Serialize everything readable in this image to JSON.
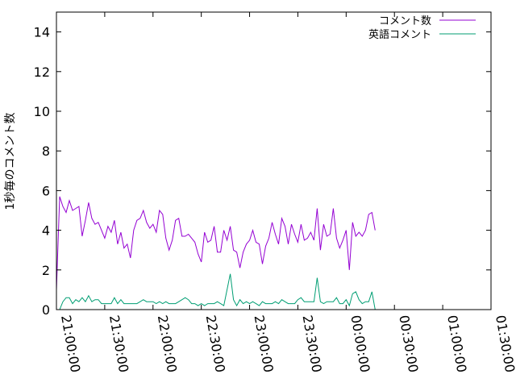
{
  "chart_data": {
    "type": "line",
    "ylabel": "1秒毎のコメント数",
    "xlabel": "",
    "title": "",
    "ylim": [
      0,
      15
    ],
    "yticks": [
      0,
      2,
      4,
      6,
      8,
      10,
      12,
      14
    ],
    "xlim_seconds_from_2100": [
      0,
      16200
    ],
    "xticks": [
      "21:00:00",
      "21:30:00",
      "22:00:00",
      "22:30:00",
      "23:00:00",
      "23:30:00",
      "00:00:00",
      "00:30:00",
      "01:00:00",
      "01:30:00"
    ],
    "legend_position": "top-right",
    "grid": false,
    "x_step_seconds": 120,
    "series": [
      {
        "name": "コメント数",
        "color": "#9400d3",
        "values": [
          1.0,
          5.7,
          5.2,
          4.9,
          5.5,
          5.0,
          5.1,
          5.2,
          3.7,
          4.5,
          5.4,
          4.6,
          4.3,
          4.4,
          4.0,
          3.6,
          4.2,
          3.9,
          4.5,
          3.3,
          3.9,
          3.1,
          3.3,
          2.6,
          4.0,
          4.5,
          4.6,
          5.0,
          4.4,
          4.1,
          4.3,
          3.9,
          5.0,
          4.8,
          3.6,
          3.0,
          3.5,
          4.5,
          4.6,
          3.7,
          3.7,
          3.8,
          3.6,
          3.4,
          2.8,
          2.4,
          3.9,
          3.4,
          3.5,
          4.2,
          2.9,
          2.9,
          4.0,
          3.5,
          4.2,
          3.0,
          2.9,
          2.1,
          2.9,
          3.3,
          3.5,
          4.0,
          3.4,
          3.3,
          2.3,
          3.2,
          3.6,
          4.4,
          3.8,
          3.3,
          4.6,
          4.2,
          3.3,
          4.3,
          3.8,
          3.4,
          4.3,
          3.5,
          3.6,
          3.9,
          3.5,
          5.1,
          3.0,
          4.3,
          3.7,
          3.8,
          5.1,
          3.6,
          3.1,
          3.5,
          4.0,
          2.0,
          4.4,
          3.7,
          3.9,
          3.7,
          4.0,
          4.8,
          4.9,
          4.0
        ]
      },
      {
        "name": "英語コメント",
        "color": "#009e73",
        "values": [
          0.0,
          0.0,
          0.4,
          0.6,
          0.6,
          0.3,
          0.5,
          0.4,
          0.6,
          0.4,
          0.7,
          0.4,
          0.5,
          0.5,
          0.3,
          0.3,
          0.3,
          0.3,
          0.6,
          0.3,
          0.5,
          0.3,
          0.3,
          0.3,
          0.3,
          0.3,
          0.4,
          0.5,
          0.4,
          0.4,
          0.4,
          0.3,
          0.4,
          0.3,
          0.4,
          0.3,
          0.3,
          0.3,
          0.4,
          0.5,
          0.6,
          0.5,
          0.3,
          0.3,
          0.2,
          0.3,
          0.2,
          0.3,
          0.3,
          0.3,
          0.4,
          0.3,
          0.2,
          1.0,
          1.8,
          0.5,
          0.2,
          0.5,
          0.3,
          0.4,
          0.3,
          0.4,
          0.3,
          0.2,
          0.4,
          0.3,
          0.3,
          0.3,
          0.4,
          0.3,
          0.5,
          0.4,
          0.3,
          0.3,
          0.3,
          0.5,
          0.6,
          0.4,
          0.4,
          0.4,
          0.4,
          1.6,
          0.4,
          0.3,
          0.4,
          0.4,
          0.4,
          0.6,
          0.3,
          0.3,
          0.5,
          0.2,
          0.8,
          0.9,
          0.5,
          0.3,
          0.4,
          0.4,
          0.9,
          0.0
        ]
      }
    ]
  }
}
